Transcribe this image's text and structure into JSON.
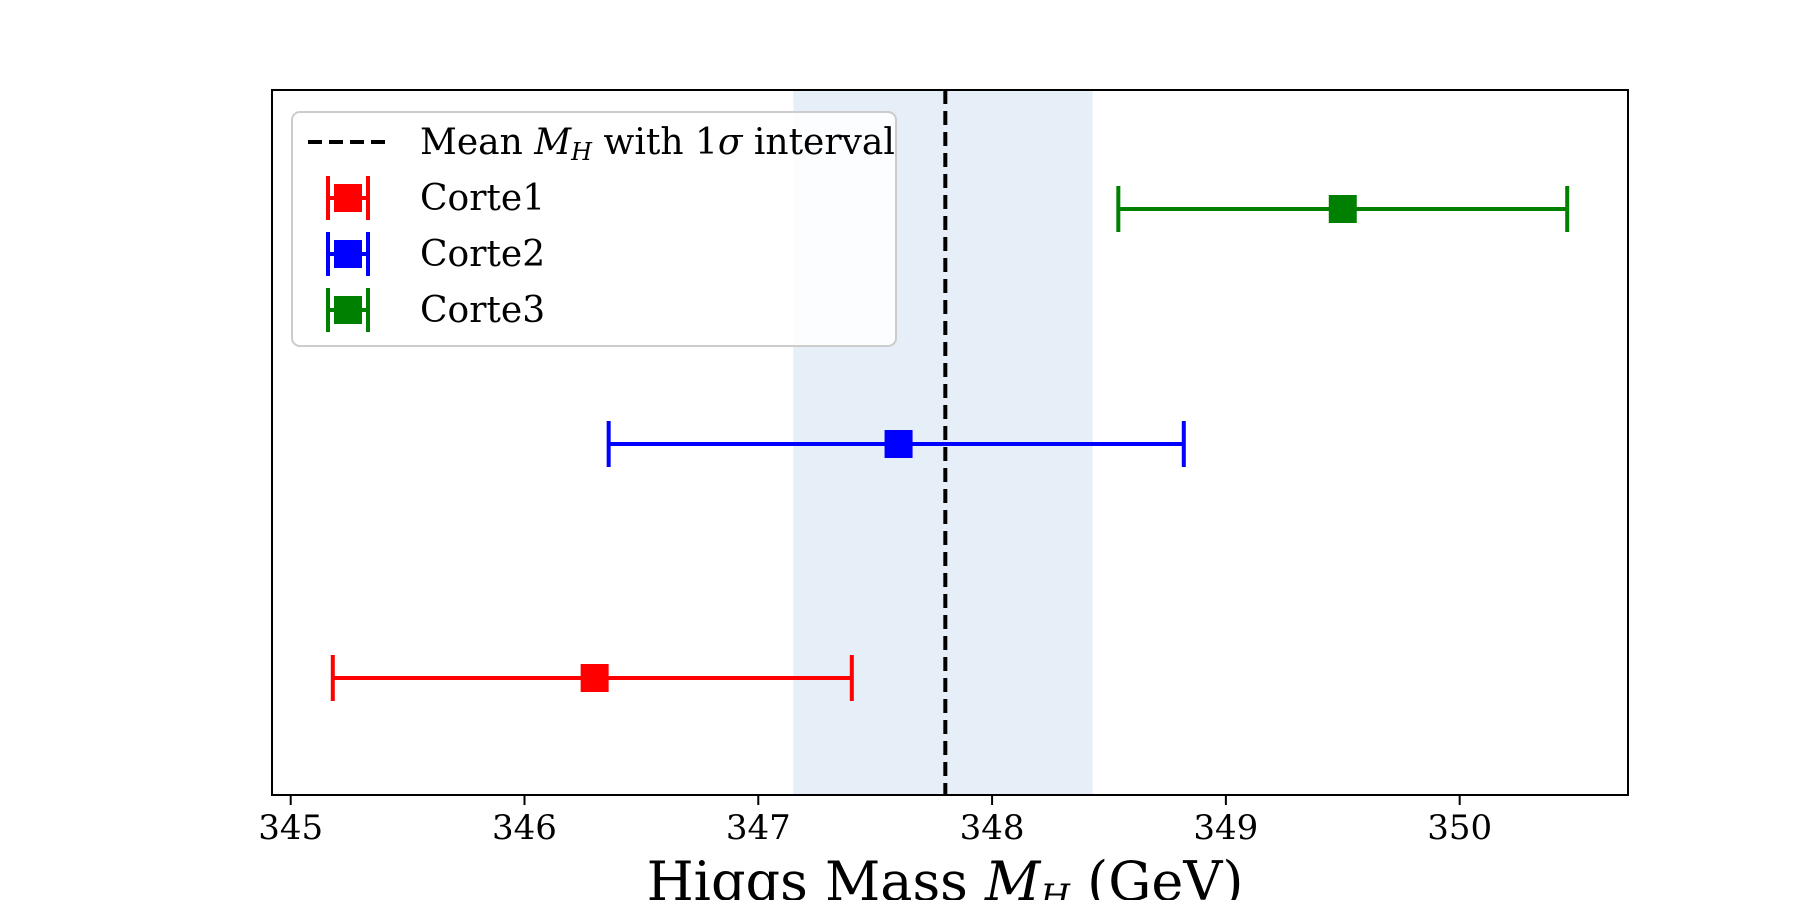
{
  "chart_data": {
    "type": "errorbar",
    "xlabel": "Higgs Mass M_H (GeV)",
    "xlim": [
      344.92,
      350.72
    ],
    "x_ticks": [
      345,
      346,
      347,
      348,
      349,
      350
    ],
    "y_ticks_visible": false,
    "grid": false,
    "legend_position": "top-left",
    "mean": {
      "label": "Mean M_H with 1σ interval",
      "value": 347.8,
      "band": [
        347.15,
        348.43
      ],
      "line_color": "#000000",
      "line_style": "dashed",
      "band_color": "#e6eef7"
    },
    "series": [
      {
        "name": "Corte1",
        "x": 346.3,
        "x_low": 345.18,
        "x_high": 347.4,
        "level": 0,
        "color": "#ff0000",
        "marker": "square"
      },
      {
        "name": "Corte2",
        "x": 347.6,
        "x_low": 346.36,
        "x_high": 348.82,
        "level": 1,
        "color": "#0000ff",
        "marker": "square"
      },
      {
        "name": "Corte3",
        "x": 349.5,
        "x_low": 348.54,
        "x_high": 350.46,
        "level": 2,
        "color": "#008000",
        "marker": "square"
      }
    ]
  }
}
